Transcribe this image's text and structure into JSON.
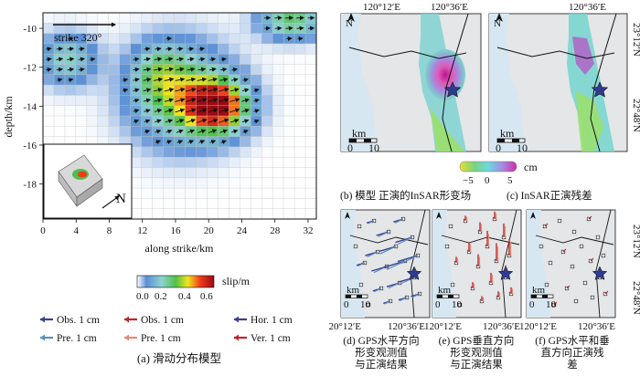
{
  "slip_model": {
    "axes": {
      "xlabel": "along strike/km",
      "ylabel": "depth/km",
      "xticks": [
        "0",
        "4",
        "8",
        "12",
        "16",
        "20",
        "24",
        "28",
        "32"
      ],
      "yticks": [
        "-10",
        "-12",
        "-14",
        "-16",
        "-18"
      ],
      "xlim": [
        0,
        33
      ],
      "ylim": [
        -19.8,
        -9.2
      ]
    },
    "strike_label": "strike 320°",
    "inset_north": "N",
    "colorbar": {
      "label": "slip/m",
      "ticks": [
        "0.0",
        "0.2",
        "0.4",
        "0.6"
      ],
      "range": [
        0,
        0.65
      ]
    },
    "caption": "(a) 滑动分布模型"
  },
  "insar_panels": {
    "top_ticks": [
      "120°12′E",
      "120°36′E"
    ],
    "right_ticks": [
      "23°12′N",
      "22°48′N"
    ],
    "north": "N",
    "scale_unit": "km",
    "scale_ticks": [
      "0",
      "10"
    ],
    "colorbar": {
      "ticks": [
        "−5",
        "0",
        "5"
      ],
      "unit": "cm"
    },
    "caption_b": "(b) 模型 正演的InSAR形变场",
    "caption_c": "(c) InSAR正演残差"
  },
  "gps_panels": {
    "bottom_ticks": [
      "120°12′E",
      "120°36′E"
    ],
    "right_ticks": [
      "23°12′N",
      "22°48′N"
    ],
    "north": "N",
    "scale_unit": "km",
    "scale_ticks": [
      "0",
      "10"
    ],
    "caption_d": [
      "(d) GPS水平方向",
      "形变观测值",
      "与正演结果"
    ],
    "caption_e": [
      "(e) GPS垂直方向",
      "形变观测值",
      "与正演结果"
    ],
    "caption_f": [
      "(f) GPS水平和垂",
      "直方向正演残",
      "差"
    ]
  },
  "legend": {
    "obs_h": "Obs. 1 cm",
    "pre_h": "Pre. 1 cm",
    "obs_v": "Obs. 1 cm",
    "pre_v": "Pre. 1 cm",
    "hor": "Hor. 1 cm",
    "ver": "Ver. 1 cm",
    "colors": {
      "obs_h": "#3b3f8f",
      "pre_h": "#5b8fc0",
      "obs_v": "#c0262a",
      "pre_v": "#e08d74",
      "hor": "#3b3f8f",
      "ver": "#c0262a"
    }
  }
}
